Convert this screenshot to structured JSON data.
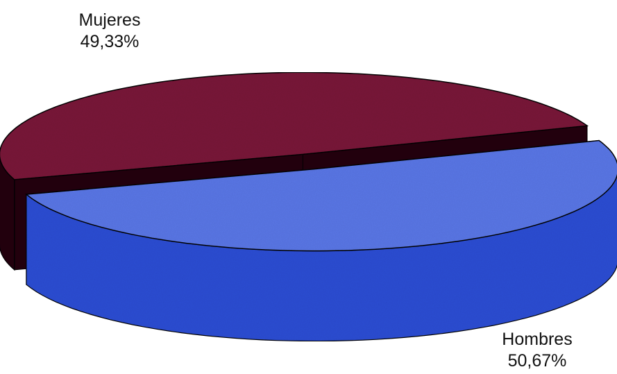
{
  "chart_data": {
    "type": "pie",
    "style": "3d-exploded",
    "title": "",
    "slices": [
      {
        "label": "Mujeres",
        "value": 49.33,
        "value_label": "49,33%",
        "color": "#7a1b3a",
        "side_color": "#250a18"
      },
      {
        "label": "Hombres",
        "value": 50.67,
        "value_label": "50,67%",
        "color": "#5b78e8",
        "side_color": "#2f4fd6"
      }
    ],
    "legend": false
  }
}
